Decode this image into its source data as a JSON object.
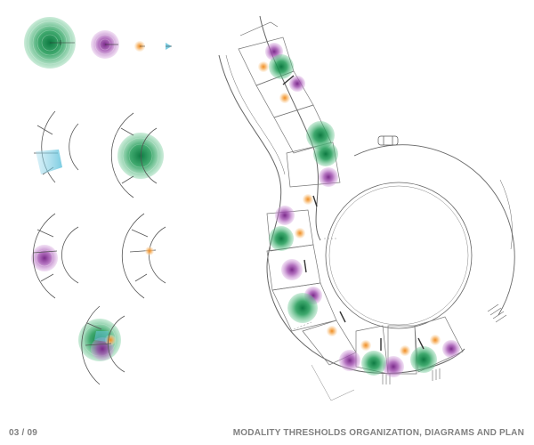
{
  "page": {
    "page_number": "03 / 09",
    "title": "MODALITY THRESHOLDS ORGANIZATION, DIAGRAMS AND PLAN"
  },
  "colors": {
    "green": "#1e9a55",
    "purple": "#9b45a8",
    "orange": "#f2a54a",
    "cyan": "#6fc8de",
    "line": "#555555",
    "footer_text": "#7f7f7f"
  },
  "diagrams": {
    "legend": [
      "green-field",
      "purple-field",
      "orange-field",
      "cyan-field"
    ],
    "quadrant_studies": [
      "cyan-in-band",
      "green-on-ring",
      "purple-outside-band",
      "orange-between-walls",
      "overlapping-fields"
    ]
  }
}
